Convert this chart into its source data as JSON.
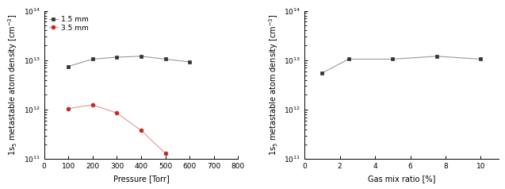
{
  "left": {
    "black_x": [
      100,
      200,
      300,
      400,
      500,
      600
    ],
    "black_y": [
      7500000000000.0,
      10500000000000.0,
      11500000000000.0,
      12000000000000.0,
      10500000000000.0,
      9200000000000.0
    ],
    "red_x": [
      100,
      200,
      300,
      400,
      500
    ],
    "red_y": [
      1050000000000.0,
      1250000000000.0,
      850000000000.0,
      380000000000.0,
      130000000000.0
    ],
    "xlabel": "Pressure [Torr]",
    "ylabel": "1s$_5$ metastable atom density [cm$^{-3}$]",
    "xlim": [
      0,
      800
    ],
    "ylim_log": [
      100000000000.0,
      100000000000000.0
    ],
    "legend_1": "1.5 mm",
    "legend_2": "3.5 mm",
    "xticks": [
      0,
      100,
      200,
      300,
      400,
      500,
      600,
      700,
      800
    ]
  },
  "right": {
    "black_x": [
      1,
      2.5,
      5,
      7.5,
      10
    ],
    "black_y": [
      5500000000000.0,
      10500000000000.0,
      10500000000000.0,
      12000000000000.0,
      10500000000000.0
    ],
    "xlabel": "Gas mix ratio [%]",
    "ylabel": "1s$_5$ metastable atom density [cm$^{-3}$]",
    "xlim": [
      0,
      11
    ],
    "ylim_log": [
      100000000000.0,
      100000000000000.0
    ],
    "xticks": [
      0,
      2,
      4,
      6,
      8,
      10
    ]
  },
  "line_color_black": "#999999",
  "marker_color_black": "#333333",
  "marker_color_red": "#cc2222",
  "line_color_red": "#dd9999",
  "marker_style": "s",
  "marker_style_red": "o",
  "fontsize": 7,
  "tick_fontsize": 6.5,
  "legend_fontsize": 6.5
}
